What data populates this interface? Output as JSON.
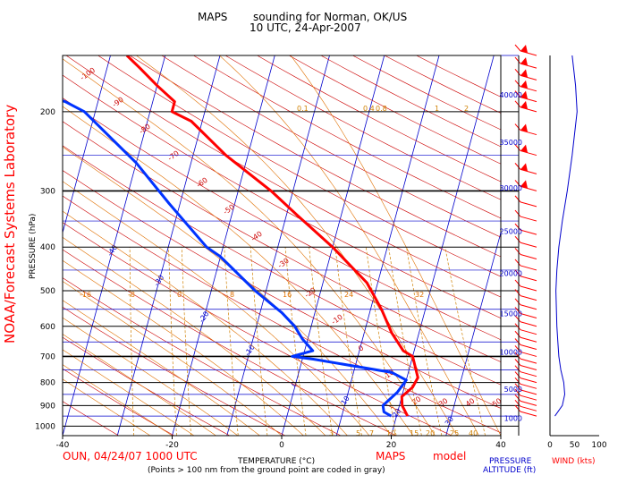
{
  "header": {
    "title_left": "MAPS",
    "title_right": "sounding for Norman, OK/US",
    "subtitle": "10 UTC, 24-Apr-2007"
  },
  "side_label": "NOAA/Forecast Systems Laboratory",
  "footer": {
    "station_line": "OUN, 04/24/07 1000 UTC",
    "model_label": "MAPS",
    "model_word": "model",
    "note": "(Points > 100 nm from the ground point are coded in gray)"
  },
  "colors": {
    "temperature": "#ff0000",
    "dewpoint": "#0033ff",
    "isobar": "#000000",
    "isotherm": "#0000cc",
    "dry_adiabat": "#cc0000",
    "moist_adiabat": "#e07000",
    "mixing_ratio": "#d08000",
    "altitude_line": "#0000cc",
    "wind_barb": "#ff0000",
    "red_label": "#ff0000"
  },
  "chart_data": {
    "type": "line",
    "chart_kind": "skew-T log-P sounding",
    "xlabel": "TEMPERATURE (°C)",
    "ylabel": "PRESSURE (hPa)",
    "x_ticks": [
      -40,
      -20,
      0,
      20,
      40
    ],
    "y_ticks": [
      200,
      300,
      400,
      500,
      600,
      700,
      800,
      900,
      1000
    ],
    "x_range": [
      -40,
      40
    ],
    "y_range": [
      1050,
      150
    ],
    "y_scale": "log",
    "isobars": [
      1000,
      950,
      900,
      850,
      800,
      750,
      700,
      650,
      600,
      550,
      500,
      450,
      400,
      350,
      300,
      250,
      200,
      150
    ],
    "isotherm_labels": [
      "-120",
      "-110",
      "-100",
      "-90",
      "-80",
      "-70",
      "-60",
      "-50",
      "-40",
      "-30",
      "-20",
      "-10",
      "0",
      "10",
      "20",
      "30",
      "40"
    ],
    "dry_adiabat_labels": [
      "-100",
      "-90",
      "-80",
      "-70",
      "-60",
      "-50",
      "-40",
      "-30",
      "-20",
      "-10",
      "0",
      "10",
      "20",
      "30",
      "40",
      "50"
    ],
    "moist_adiabat_labels": [
      "-16",
      "-8",
      "0",
      "8",
      "16",
      "24",
      "32"
    ],
    "mixing_ratio_labels": [
      "0.1",
      "0.4",
      "0.8",
      "1",
      "2",
      "3",
      "5",
      "7",
      "10",
      "15",
      "20",
      "25",
      "40"
    ],
    "series": [
      {
        "name": "temperature",
        "points": [
          [
            22.0,
            950
          ],
          [
            20.5,
            900
          ],
          [
            20.0,
            860
          ],
          [
            21.5,
            820
          ],
          [
            22.0,
            780
          ],
          [
            20.0,
            700
          ],
          [
            18.0,
            680
          ],
          [
            15.0,
            620
          ],
          [
            12.0,
            550
          ],
          [
            8.0,
            480
          ],
          [
            0.0,
            400
          ],
          [
            -8.0,
            340
          ],
          [
            -14.0,
            300
          ],
          [
            -24.0,
            250
          ],
          [
            -32.0,
            210
          ],
          [
            -36.0,
            200
          ],
          [
            -36.0,
            190
          ],
          [
            -40.0,
            175
          ],
          [
            -44.0,
            160
          ],
          [
            -47.0,
            150
          ]
        ]
      },
      {
        "name": "dewpoint",
        "points": [
          [
            19.0,
            950
          ],
          [
            17.5,
            930
          ],
          [
            17.0,
            900
          ],
          [
            18.0,
            870
          ],
          [
            19.0,
            840
          ],
          [
            20.0,
            790
          ],
          [
            17.0,
            760
          ],
          [
            2.0,
            710
          ],
          [
            -2.0,
            700
          ],
          [
            1.5,
            680
          ],
          [
            -1.0,
            640
          ],
          [
            -3.0,
            600
          ],
          [
            -6.0,
            560
          ],
          [
            -12.0,
            500
          ],
          [
            -20.0,
            420
          ],
          [
            -23.0,
            400
          ],
          [
            -32.0,
            320
          ],
          [
            -40.0,
            260
          ],
          [
            -52.0,
            200
          ],
          [
            -56.0,
            190
          ],
          [
            -62.0,
            180
          ],
          [
            -66.0,
            170
          ],
          [
            -70.0,
            160
          ],
          [
            -72.0,
            150
          ]
        ]
      }
    ],
    "wind_pressures": [
      950,
      925,
      900,
      875,
      850,
      825,
      800,
      775,
      750,
      725,
      700,
      675,
      650,
      625,
      600,
      575,
      550,
      525,
      500,
      475,
      450,
      425,
      400,
      375,
      350,
      325,
      300,
      275,
      250,
      225,
      200,
      190,
      180,
      170,
      160,
      150
    ],
    "altitude_axis": {
      "label_line1": "PRESSURE",
      "label_line2": "ALTITUDE (ft)",
      "ticks": [
        "1000",
        "5000",
        "10000",
        "15000",
        "20000",
        "25000",
        "30000",
        "35000",
        "40000"
      ],
      "tick_values_ft": [
        1000,
        5000,
        10000,
        15000,
        20000,
        25000,
        30000,
        35000,
        40000
      ]
    },
    "wind_speed_axis": {
      "label": "WIND (kts)",
      "ticks": [
        "0",
        "50",
        "100"
      ],
      "range": [
        0,
        100
      ]
    },
    "wind_speed_profile": [
      [
        950,
        10
      ],
      [
        900,
        25
      ],
      [
        850,
        30
      ],
      [
        800,
        28
      ],
      [
        750,
        22
      ],
      [
        700,
        18
      ],
      [
        650,
        16
      ],
      [
        600,
        14
      ],
      [
        500,
        12
      ],
      [
        450,
        14
      ],
      [
        400,
        18
      ],
      [
        350,
        25
      ],
      [
        300,
        35
      ],
      [
        250,
        45
      ],
      [
        200,
        55
      ],
      [
        175,
        52
      ],
      [
        160,
        48
      ],
      [
        150,
        45
      ]
    ]
  }
}
